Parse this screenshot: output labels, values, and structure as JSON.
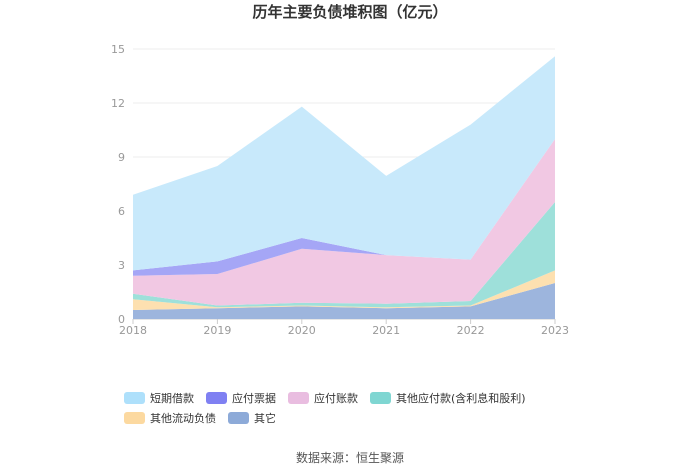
{
  "chart_data": {
    "type": "area",
    "title": "历年主要负债堆积图（亿元）",
    "x": [
      "2018",
      "2019",
      "2020",
      "2021",
      "2022",
      "2023"
    ],
    "ylim": [
      0,
      15
    ],
    "yticks": [
      "0",
      "3",
      "6",
      "9",
      "12",
      "15"
    ],
    "stacked": true,
    "grid": true,
    "legend_position": "bottom",
    "series": [
      {
        "name": "其它",
        "color": "#9db5dd",
        "values": [
          0.5,
          0.6,
          0.7,
          0.6,
          0.7,
          2.0
        ]
      },
      {
        "name": "其他流动负债",
        "color": "#fde0b0",
        "values": [
          0.6,
          0.05,
          0.05,
          0.05,
          0.05,
          0.7
        ]
      },
      {
        "name": "其他应付款(含利息和股利)",
        "color": "#9ee0da",
        "values": [
          0.3,
          0.1,
          0.15,
          0.2,
          0.25,
          3.8
        ]
      },
      {
        "name": "应付账款",
        "color": "#f1c8e3",
        "values": [
          1.0,
          1.75,
          3.0,
          2.7,
          2.3,
          3.5
        ]
      },
      {
        "name": "应付票据",
        "color": "#a5a6f6",
        "values": [
          0.3,
          0.7,
          0.6,
          0.0,
          0.0,
          0.0
        ]
      },
      {
        "name": "短期借款",
        "color": "#c8e9fb",
        "values": [
          4.2,
          5.3,
          7.3,
          4.4,
          7.5,
          4.6
        ]
      }
    ],
    "legend": [
      {
        "name": "短期借款",
        "color": "#aee0fb"
      },
      {
        "name": "应付票据",
        "color": "#7f80f2"
      },
      {
        "name": "应付账款",
        "color": "#e9bde0"
      },
      {
        "name": "其他应付款(含利息和股利)",
        "color": "#7fd6d2"
      },
      {
        "name": "其他流动负债",
        "color": "#fcd9a0"
      },
      {
        "name": "其它",
        "color": "#8daad8"
      }
    ]
  },
  "source": "数据来源：恒生聚源"
}
